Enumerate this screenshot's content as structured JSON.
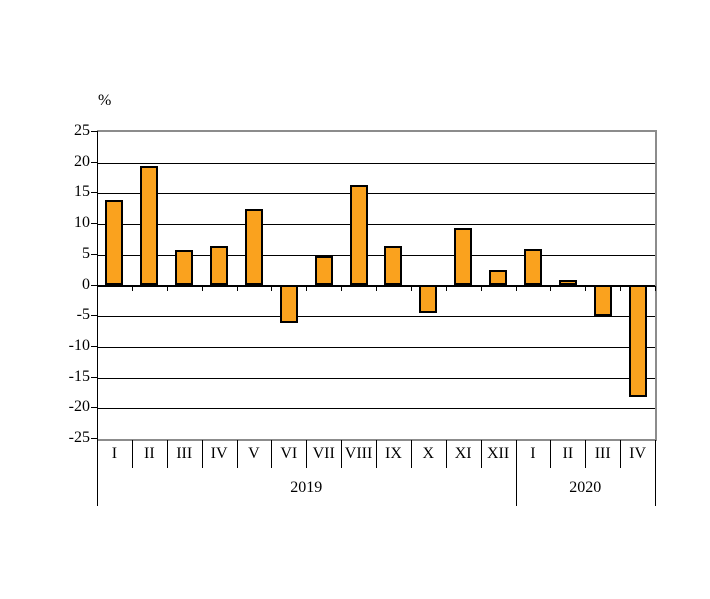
{
  "chart_data": {
    "type": "bar",
    "title": "",
    "ylabel": "%",
    "xlabel": "",
    "ylim": [
      -25,
      25
    ],
    "ytick_step": 5,
    "grid": true,
    "legend": "none",
    "bar_color": "#FAA21E",
    "bar_border_color": "#000000",
    "plot_border_color": "#8c8c8c",
    "gridline_color": "#000000",
    "groups": [
      {
        "year": "2019",
        "categories": [
          "I",
          "II",
          "III",
          "IV",
          "V",
          "VI",
          "VII",
          "VIII",
          "IX",
          "X",
          "XI",
          "XII"
        ],
        "values": [
          14.0,
          19.4,
          5.8,
          6.5,
          12.4,
          -6.2,
          4.8,
          16.4,
          6.4,
          -4.7,
          9.3,
          2.6
        ]
      },
      {
        "year": "2020",
        "categories": [
          "I",
          "II",
          "III",
          "IV"
        ],
        "values": [
          6.0,
          0.9,
          -5.1,
          -18.3
        ]
      }
    ]
  }
}
